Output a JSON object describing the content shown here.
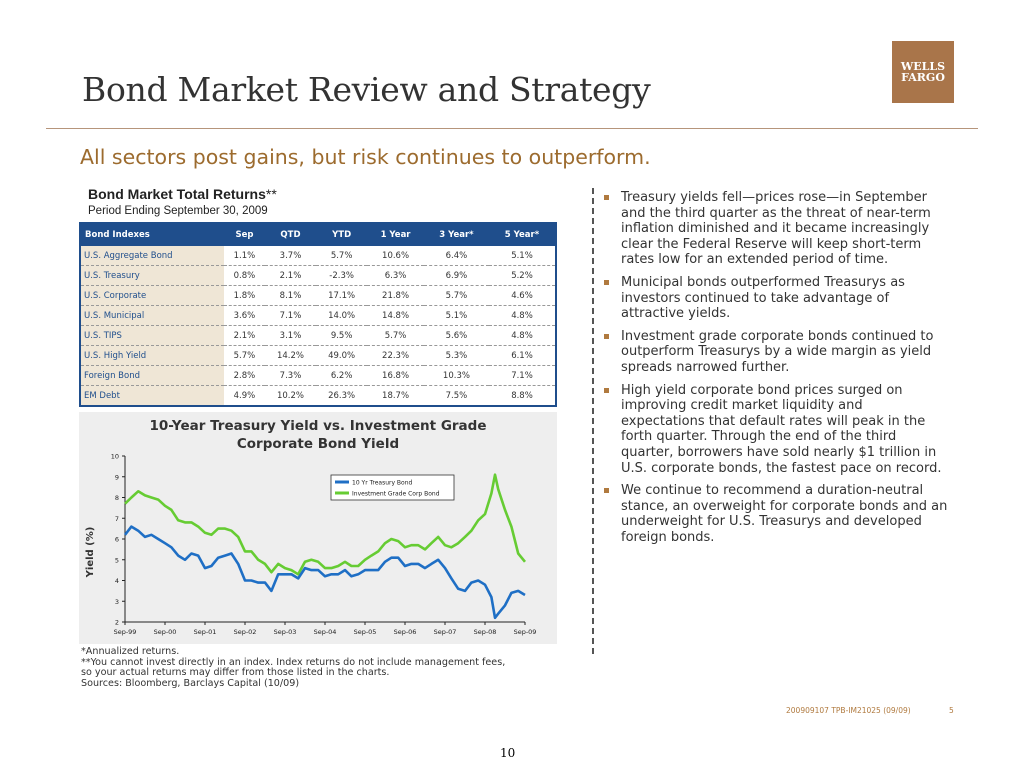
{
  "header": {
    "title": "Bond Market Review and Strategy",
    "logo_line1": "WELLS",
    "logo_line2": "FARGO",
    "subtitle": "All sectors post gains, but risk continues to outperform."
  },
  "table": {
    "title": "Bond Market Total Returns",
    "title_suffix": "**",
    "subtitle": "Period Ending September 30, 2009",
    "columns": [
      "Bond Indexes",
      "Sep",
      "QTD",
      "YTD",
      "1 Year",
      "3 Year*",
      "5 Year*"
    ],
    "rows": [
      [
        "U.S. Aggregate Bond",
        "1.1%",
        "3.7%",
        "5.7%",
        "10.6%",
        "6.4%",
        "5.1%"
      ],
      [
        "U.S. Treasury",
        "0.8%",
        "2.1%",
        "-2.3%",
        "6.3%",
        "6.9%",
        "5.2%"
      ],
      [
        "U.S. Corporate",
        "1.8%",
        "8.1%",
        "17.1%",
        "21.8%",
        "5.7%",
        "4.6%"
      ],
      [
        "U.S. Municipal",
        "3.6%",
        "7.1%",
        "14.0%",
        "14.8%",
        "5.1%",
        "4.8%"
      ],
      [
        "U.S. TIPS",
        "2.1%",
        "3.1%",
        "9.5%",
        "5.7%",
        "5.6%",
        "4.8%"
      ],
      [
        "U.S. High Yield",
        "5.7%",
        "14.2%",
        "49.0%",
        "22.3%",
        "5.3%",
        "6.1%"
      ],
      [
        "Foreign Bond",
        "2.8%",
        "7.3%",
        "6.2%",
        "16.8%",
        "10.3%",
        "7.1%"
      ],
      [
        "EM Debt",
        "4.9%",
        "10.2%",
        "26.3%",
        "18.7%",
        "7.5%",
        "8.8%"
      ]
    ]
  },
  "chart_data": {
    "type": "line",
    "title_line1": "10-Year Treasury Yield vs. Investment Grade",
    "title_line2": "Corporate Bond Yield",
    "xlabel": "",
    "ylabel": "Yield (%)",
    "ylim": [
      2,
      10
    ],
    "yticks": [
      "2",
      "3",
      "4",
      "5",
      "6",
      "7",
      "8",
      "9",
      "10"
    ],
    "xticks": [
      "Sep-99",
      "Sep-00",
      "Sep-01",
      "Sep-02",
      "Sep-03",
      "Sep-04",
      "Sep-05",
      "Sep-06",
      "Sep-07",
      "Sep-08",
      "Sep-09"
    ],
    "x_start": 1999.67,
    "x_end": 2009.67,
    "legend_position": "top-right",
    "series": [
      {
        "name": "10 Yr Treasury Bond",
        "color": "#1f6fc5",
        "x": [
          1999.67,
          1999.83,
          2000.0,
          2000.17,
          2000.33,
          2000.5,
          2000.67,
          2000.83,
          2001.0,
          2001.17,
          2001.33,
          2001.5,
          2001.67,
          2001.83,
          2002.0,
          2002.17,
          2002.33,
          2002.5,
          2002.67,
          2002.83,
          2003.0,
          2003.17,
          2003.33,
          2003.5,
          2003.67,
          2003.83,
          2004.0,
          2004.17,
          2004.33,
          2004.5,
          2004.67,
          2004.83,
          2005.0,
          2005.17,
          2005.33,
          2005.5,
          2005.67,
          2005.83,
          2006.0,
          2006.17,
          2006.33,
          2006.5,
          2006.67,
          2006.83,
          2007.0,
          2007.17,
          2007.33,
          2007.5,
          2007.67,
          2007.83,
          2008.0,
          2008.17,
          2008.33,
          2008.5,
          2008.67,
          2008.83,
          2008.92,
          2009.0,
          2009.17,
          2009.33,
          2009.5,
          2009.67
        ],
        "values": [
          6.2,
          6.6,
          6.4,
          6.1,
          6.2,
          6.0,
          5.8,
          5.6,
          5.2,
          5.0,
          5.3,
          5.2,
          4.6,
          4.7,
          5.1,
          5.2,
          5.3,
          4.8,
          4.0,
          4.0,
          3.9,
          3.9,
          3.5,
          4.3,
          4.3,
          4.3,
          4.1,
          4.6,
          4.5,
          4.5,
          4.2,
          4.3,
          4.3,
          4.5,
          4.2,
          4.3,
          4.5,
          4.5,
          4.5,
          4.9,
          5.1,
          5.1,
          4.7,
          4.8,
          4.8,
          4.6,
          4.8,
          5.0,
          4.6,
          4.1,
          3.6,
          3.5,
          3.9,
          4.0,
          3.8,
          3.2,
          2.2,
          2.4,
          2.8,
          3.4,
          3.5,
          3.3
        ]
      },
      {
        "name": "Investment Grade Corp Bond",
        "color": "#66cc33",
        "x": [
          1999.67,
          1999.83,
          2000.0,
          2000.17,
          2000.33,
          2000.5,
          2000.67,
          2000.83,
          2001.0,
          2001.17,
          2001.33,
          2001.5,
          2001.67,
          2001.83,
          2002.0,
          2002.17,
          2002.33,
          2002.5,
          2002.67,
          2002.83,
          2003.0,
          2003.17,
          2003.33,
          2003.5,
          2003.67,
          2003.83,
          2004.0,
          2004.17,
          2004.33,
          2004.5,
          2004.67,
          2004.83,
          2005.0,
          2005.17,
          2005.33,
          2005.5,
          2005.67,
          2005.83,
          2006.0,
          2006.17,
          2006.33,
          2006.5,
          2006.67,
          2006.83,
          2007.0,
          2007.17,
          2007.33,
          2007.5,
          2007.67,
          2007.83,
          2008.0,
          2008.17,
          2008.33,
          2008.5,
          2008.67,
          2008.83,
          2008.92,
          2009.0,
          2009.17,
          2009.33,
          2009.5,
          2009.67
        ],
        "values": [
          7.7,
          8.0,
          8.3,
          8.1,
          8.0,
          7.9,
          7.6,
          7.4,
          6.9,
          6.8,
          6.8,
          6.6,
          6.3,
          6.2,
          6.5,
          6.5,
          6.4,
          6.1,
          5.4,
          5.4,
          5.0,
          4.8,
          4.4,
          4.8,
          4.6,
          4.5,
          4.3,
          4.9,
          5.0,
          4.9,
          4.6,
          4.6,
          4.7,
          4.9,
          4.7,
          4.7,
          5.0,
          5.2,
          5.4,
          5.8,
          6.0,
          5.9,
          5.6,
          5.7,
          5.7,
          5.5,
          5.8,
          6.1,
          5.7,
          5.6,
          5.8,
          6.1,
          6.4,
          6.9,
          7.2,
          8.2,
          9.1,
          8.4,
          7.4,
          6.6,
          5.3,
          4.9
        ]
      }
    ]
  },
  "footnotes": {
    "line1": "*Annualized returns.",
    "line2": "**You cannot invest directly in an index. Index returns do not include management fees,",
    "line3": "so your actual returns may differ from those listed in  the charts.",
    "line4": "Sources: Bloomberg, Barclays Capital (10/09)"
  },
  "bullets": [
    "Treasury yields fell—prices rose—in September and the third quarter as the threat of near-term inflation diminished and it became increasingly clear the Federal Reserve will keep short-term rates low for an extended period of time.",
    "Municipal bonds outperformed Treasurys as investors continued to take advantage of attractive yields.",
    "Investment grade corporate bonds continued to outperform Treasurys by a wide margin as yield spreads narrowed further.",
    "High yield corporate bond prices surged on improving credit market liquidity and expectations that default rates will peak in the forth quarter. Through the end of the third quarter, borrowers have sold nearly $1 trillion in U.S. corporate bonds, the fastest pace on record.",
    "We continue to recommend a duration-neutral stance, an overweight for corporate bonds and an underweight for U.S. Treasurys and developed foreign bonds."
  ],
  "footer": {
    "code": "200909107 TPB-IM21025 (09/09)",
    "page": "5",
    "slide_number": "10"
  }
}
